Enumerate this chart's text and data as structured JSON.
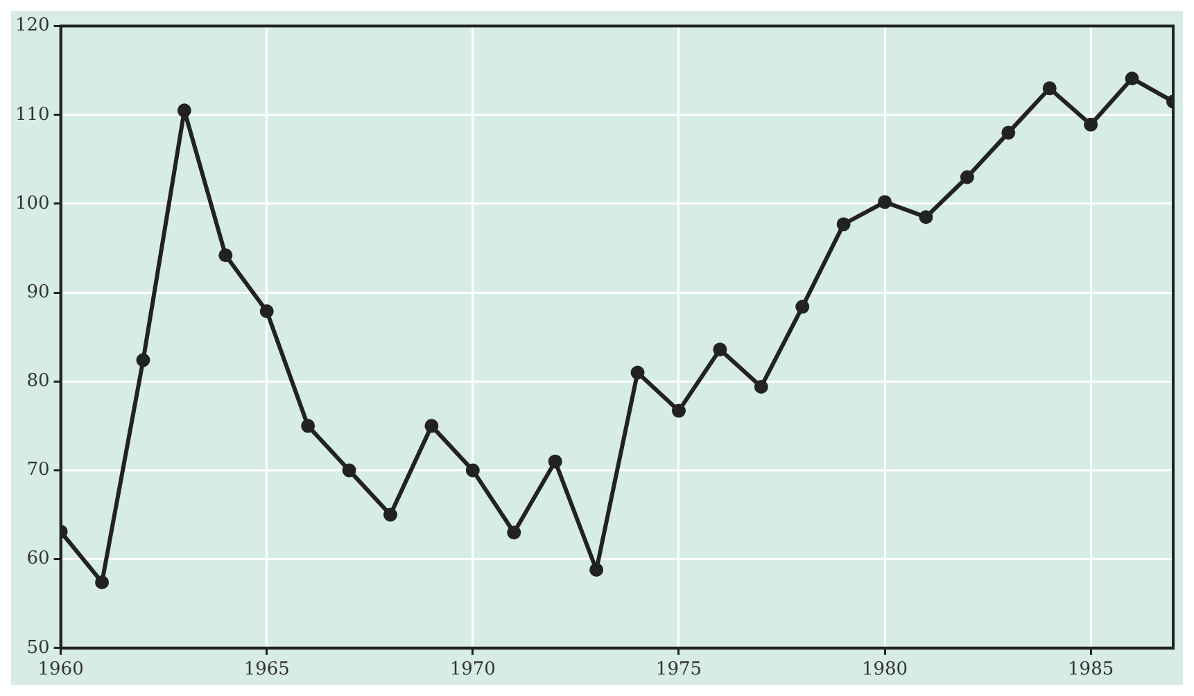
{
  "chart_data": {
    "type": "line",
    "x": [
      1960,
      1961,
      1962,
      1963,
      1964,
      1965,
      1966,
      1967,
      1968,
      1969,
      1970,
      1971,
      1972,
      1973,
      1974,
      1975,
      1976,
      1977,
      1978,
      1979,
      1980,
      1981,
      1982,
      1983,
      1984,
      1985,
      1986,
      1987
    ],
    "series": [
      {
        "color": "#222222",
        "values": [
          63.1,
          57.4,
          82.4,
          110.5,
          94.2,
          87.9,
          75,
          70,
          65,
          75,
          70,
          63,
          71,
          58.8,
          81,
          76.7,
          83.6,
          79.4,
          88.4,
          97.7,
          100.2,
          98.5,
          103,
          108,
          113,
          108.9,
          114.1,
          111.5
        ]
      }
    ],
    "xlim": [
      1960,
      1987
    ],
    "xticks": [
      1960,
      1965,
      1970,
      1975,
      1980,
      1985
    ],
    "ylim": [
      50,
      120
    ],
    "yticks": [
      50,
      60,
      70,
      80,
      90,
      100,
      110,
      120
    ],
    "grid": true,
    "legend": false,
    "marker": "circle",
    "line_style": "solid"
  }
}
